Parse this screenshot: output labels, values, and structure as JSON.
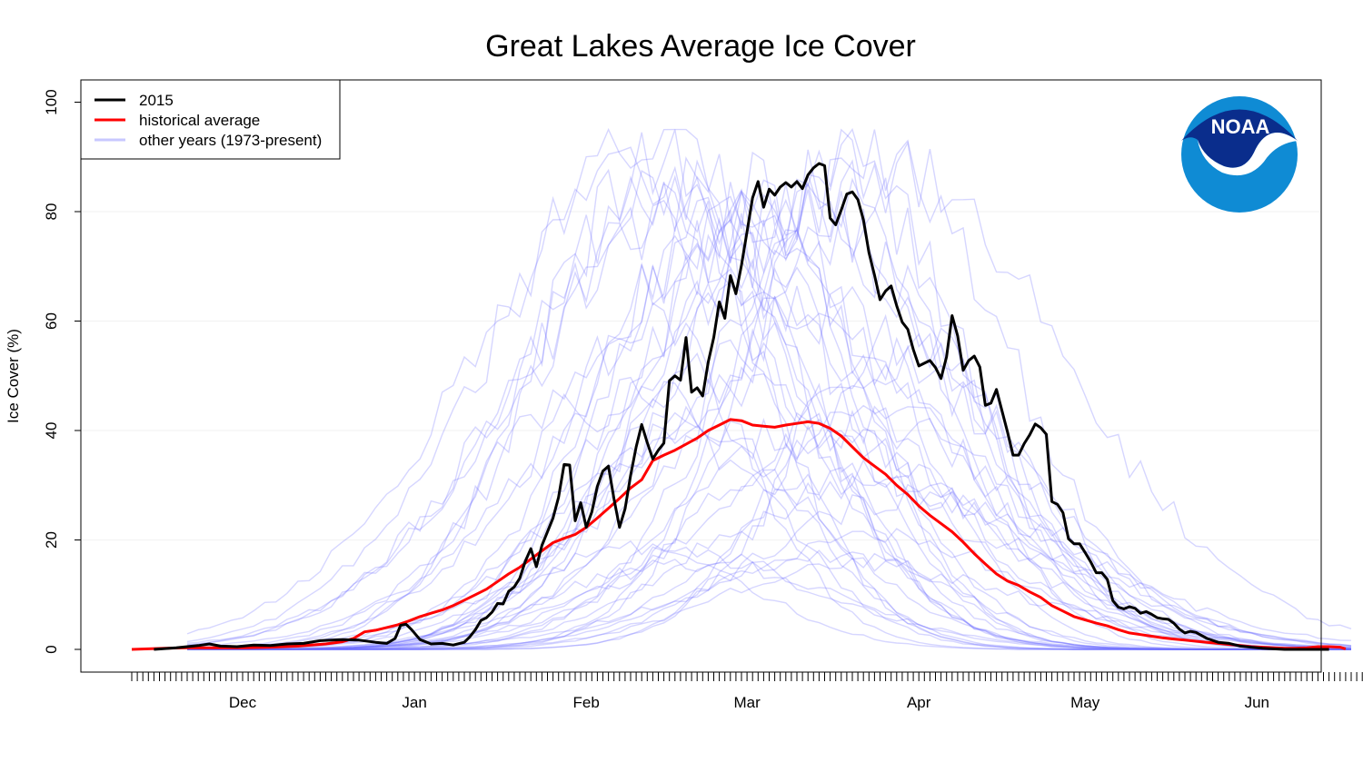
{
  "chart_data": {
    "type": "line",
    "title": "Great Lakes Average Ice Cover",
    "xlabel": "",
    "ylabel": "Ice Cover (%)",
    "ylim": [
      0,
      100
    ],
    "x_range_days": [
      -20,
      212
    ],
    "y_ticks": [
      0,
      20,
      40,
      60,
      80,
      100
    ],
    "x_ticks": [
      {
        "label": "Dec",
        "day": 0
      },
      {
        "label": "Jan",
        "day": 31
      },
      {
        "label": "Feb",
        "day": 62
      },
      {
        "label": "Mar",
        "day": 91
      },
      {
        "label": "Apr",
        "day": 122
      },
      {
        "label": "May",
        "day": 152
      },
      {
        "label": "Jun",
        "day": 183
      }
    ],
    "grid": true,
    "legend_position": "top-left",
    "legend": [
      {
        "label": "2015",
        "color": "#000000"
      },
      {
        "label": "historical average",
        "color": "#ff0000"
      },
      {
        "label": "other years (1973-present)",
        "color": "#c8c8ff"
      }
    ],
    "logo": {
      "text": "NOAA",
      "color_top": "#0a2d8c",
      "color_bottom": "#0f8bd4"
    },
    "series": [
      {
        "name": "2015",
        "color": "#000000",
        "points": [
          [
            -16,
            0
          ],
          [
            -12,
            0.3
          ],
          [
            -8,
            0.7
          ],
          [
            -6,
            1.0
          ],
          [
            -4,
            0.6
          ],
          [
            -1,
            0.5
          ],
          [
            2,
            0.8
          ],
          [
            5,
            0.7
          ],
          [
            8,
            1.0
          ],
          [
            11,
            1.1
          ],
          [
            14,
            1.6
          ],
          [
            18,
            1.8
          ],
          [
            21,
            1.7
          ],
          [
            24,
            1.3
          ],
          [
            26,
            1.1
          ],
          [
            27.5,
            2.0
          ],
          [
            28.5,
            4.4
          ],
          [
            29.5,
            4.6
          ],
          [
            30.5,
            3.6
          ],
          [
            32,
            1.8
          ],
          [
            34,
            1.0
          ],
          [
            36,
            1.1
          ],
          [
            38,
            0.8
          ],
          [
            40,
            1.3
          ],
          [
            41,
            2.3
          ],
          [
            42,
            3.6
          ],
          [
            43,
            5.3
          ],
          [
            44,
            5.8
          ],
          [
            45,
            6.8
          ],
          [
            46,
            8.4
          ],
          [
            47,
            8.3
          ],
          [
            48,
            10.6
          ],
          [
            49,
            11.4
          ],
          [
            50,
            13.0
          ],
          [
            51,
            16.1
          ],
          [
            52,
            18.4
          ],
          [
            53,
            15.1
          ],
          [
            54,
            19.0
          ],
          [
            55,
            21.5
          ],
          [
            56,
            24.0
          ],
          [
            57,
            27.8
          ],
          [
            58,
            33.8
          ],
          [
            59,
            33.7
          ],
          [
            60,
            23.5
          ],
          [
            61,
            26.8
          ],
          [
            62,
            22.3
          ],
          [
            63,
            25.1
          ],
          [
            64,
            29.8
          ],
          [
            65,
            32.6
          ],
          [
            66,
            33.5
          ],
          [
            67,
            27.5
          ],
          [
            68,
            22.3
          ],
          [
            69,
            25.7
          ],
          [
            70,
            31.8
          ],
          [
            71,
            37.0
          ],
          [
            72,
            41.1
          ],
          [
            73,
            37.8
          ],
          [
            74,
            34.8
          ],
          [
            75,
            36.4
          ],
          [
            76,
            37.7
          ],
          [
            77,
            49.1
          ],
          [
            78,
            50.0
          ],
          [
            79,
            49.2
          ],
          [
            80,
            57.0
          ],
          [
            81,
            47.0
          ],
          [
            82,
            47.8
          ],
          [
            83,
            46.3
          ],
          [
            84,
            52.5
          ],
          [
            85,
            57.0
          ],
          [
            86,
            63.5
          ],
          [
            87,
            60.5
          ],
          [
            88,
            68.3
          ],
          [
            89,
            65.0
          ],
          [
            90,
            70.2
          ],
          [
            91,
            76.3
          ],
          [
            92,
            82.5
          ],
          [
            93,
            85.5
          ],
          [
            94,
            80.8
          ],
          [
            95,
            84.1
          ],
          [
            96,
            83.0
          ],
          [
            97,
            84.5
          ],
          [
            98,
            85.3
          ],
          [
            99,
            84.5
          ],
          [
            100,
            85.5
          ],
          [
            101,
            84.2
          ],
          [
            102,
            86.7
          ],
          [
            103,
            88.0
          ],
          [
            104,
            88.8
          ],
          [
            105,
            88.4
          ],
          [
            106,
            78.8
          ],
          [
            107,
            77.6
          ],
          [
            108,
            80.3
          ],
          [
            109,
            83.2
          ],
          [
            110,
            83.6
          ],
          [
            111,
            82.2
          ],
          [
            112,
            78.5
          ],
          [
            113,
            72.5
          ],
          [
            114,
            68.4
          ],
          [
            115,
            63.9
          ],
          [
            116,
            65.5
          ],
          [
            117,
            66.4
          ],
          [
            118,
            62.8
          ],
          [
            119,
            59.8
          ],
          [
            120,
            58.5
          ],
          [
            121,
            54.8
          ],
          [
            122,
            51.8
          ],
          [
            123,
            52.3
          ],
          [
            124,
            52.8
          ],
          [
            125,
            51.5
          ],
          [
            126,
            49.5
          ],
          [
            127,
            53.5
          ],
          [
            128,
            61.0
          ],
          [
            129,
            57.3
          ],
          [
            130,
            51.0
          ],
          [
            131,
            52.8
          ],
          [
            132,
            53.6
          ],
          [
            133,
            51.6
          ],
          [
            134,
            44.6
          ],
          [
            135,
            45.0
          ],
          [
            136,
            47.5
          ],
          [
            137,
            43.6
          ],
          [
            138,
            39.7
          ],
          [
            139,
            35.5
          ],
          [
            140,
            35.5
          ],
          [
            141,
            37.6
          ],
          [
            142,
            39.2
          ],
          [
            143,
            41.2
          ],
          [
            144,
            40.5
          ],
          [
            145,
            39.3
          ],
          [
            146,
            27.0
          ],
          [
            147,
            26.5
          ],
          [
            148,
            25.0
          ],
          [
            149,
            20.2
          ],
          [
            150,
            19.3
          ],
          [
            151,
            19.3
          ],
          [
            152,
            17.7
          ],
          [
            153,
            16.0
          ],
          [
            154,
            14.0
          ],
          [
            155,
            14.0
          ],
          [
            156,
            12.8
          ],
          [
            157,
            8.9
          ],
          [
            158,
            7.7
          ],
          [
            159,
            7.4
          ],
          [
            160,
            7.8
          ],
          [
            161,
            7.5
          ],
          [
            162,
            6.6
          ],
          [
            163,
            6.9
          ],
          [
            164,
            6.4
          ],
          [
            165,
            5.8
          ],
          [
            166,
            5.6
          ],
          [
            167,
            5.5
          ],
          [
            168,
            4.8
          ],
          [
            169,
            3.7
          ],
          [
            170,
            3.0
          ],
          [
            171,
            3.3
          ],
          [
            172,
            3.1
          ],
          [
            174,
            2.0
          ],
          [
            176,
            1.3
          ],
          [
            178,
            1.1
          ],
          [
            180,
            0.6
          ],
          [
            182,
            0.4
          ],
          [
            184,
            0.2
          ],
          [
            186,
            0.1
          ],
          [
            188,
            0
          ],
          [
            190,
            0
          ],
          [
            193,
            0
          ],
          [
            196,
            0
          ]
        ]
      },
      {
        "name": "historical average",
        "color": "#ff0000",
        "points": [
          [
            -20,
            0
          ],
          [
            -17,
            0.1
          ],
          [
            -14,
            0.2
          ],
          [
            -10,
            0.3
          ],
          [
            -5,
            0.3
          ],
          [
            0,
            0.3
          ],
          [
            5,
            0.4
          ],
          [
            10,
            0.6
          ],
          [
            15,
            1.0
          ],
          [
            18,
            1.4
          ],
          [
            20,
            2.0
          ],
          [
            22,
            3.2
          ],
          [
            24,
            3.5
          ],
          [
            26,
            4.0
          ],
          [
            28,
            4.5
          ],
          [
            30,
            5.2
          ],
          [
            32,
            6.0
          ],
          [
            34,
            6.6
          ],
          [
            36,
            7.2
          ],
          [
            38,
            8.0
          ],
          [
            40,
            9.0
          ],
          [
            42,
            10.0
          ],
          [
            44,
            11.0
          ],
          [
            46,
            12.4
          ],
          [
            48,
            13.8
          ],
          [
            50,
            15.0
          ],
          [
            52,
            16.5
          ],
          [
            54,
            18.0
          ],
          [
            56,
            19.5
          ],
          [
            58,
            20.3
          ],
          [
            60,
            21.0
          ],
          [
            62,
            22.3
          ],
          [
            64,
            24.0
          ],
          [
            66,
            25.8
          ],
          [
            68,
            27.6
          ],
          [
            70,
            29.5
          ],
          [
            72,
            31.0
          ],
          [
            74,
            34.5
          ],
          [
            76,
            35.5
          ],
          [
            78,
            36.4
          ],
          [
            80,
            37.5
          ],
          [
            82,
            38.6
          ],
          [
            84,
            40.0
          ],
          [
            86,
            41.0
          ],
          [
            88,
            42.0
          ],
          [
            90,
            41.8
          ],
          [
            92,
            41.0
          ],
          [
            94,
            40.8
          ],
          [
            96,
            40.6
          ],
          [
            98,
            41.0
          ],
          [
            100,
            41.3
          ],
          [
            102,
            41.6
          ],
          [
            104,
            41.3
          ],
          [
            106,
            40.4
          ],
          [
            108,
            39.0
          ],
          [
            110,
            37.0
          ],
          [
            112,
            35.0
          ],
          [
            114,
            33.5
          ],
          [
            116,
            32.0
          ],
          [
            118,
            30.0
          ],
          [
            120,
            28.3
          ],
          [
            122,
            26.2
          ],
          [
            124,
            24.5
          ],
          [
            126,
            23.0
          ],
          [
            128,
            21.5
          ],
          [
            130,
            19.6
          ],
          [
            132,
            17.5
          ],
          [
            134,
            15.6
          ],
          [
            136,
            13.8
          ],
          [
            138,
            12.5
          ],
          [
            140,
            11.7
          ],
          [
            142,
            10.5
          ],
          [
            144,
            9.5
          ],
          [
            146,
            8.0
          ],
          [
            148,
            7.0
          ],
          [
            150,
            6.0
          ],
          [
            152,
            5.4
          ],
          [
            154,
            4.8
          ],
          [
            156,
            4.3
          ],
          [
            158,
            3.6
          ],
          [
            160,
            3.0
          ],
          [
            162,
            2.7
          ],
          [
            164,
            2.4
          ],
          [
            166,
            2.1
          ],
          [
            168,
            1.9
          ],
          [
            170,
            1.7
          ],
          [
            172,
            1.5
          ],
          [
            174,
            1.3
          ],
          [
            176,
            1.1
          ],
          [
            178,
            0.9
          ],
          [
            180,
            0.7
          ],
          [
            182,
            0.5
          ],
          [
            184,
            0.4
          ],
          [
            186,
            0.3
          ],
          [
            188,
            0.2
          ],
          [
            190,
            0.2
          ],
          [
            192,
            0.3
          ],
          [
            194,
            0.5
          ],
          [
            196,
            0.5
          ],
          [
            198,
            0.4
          ],
          [
            199,
            0.1
          ]
        ]
      }
    ]
  }
}
